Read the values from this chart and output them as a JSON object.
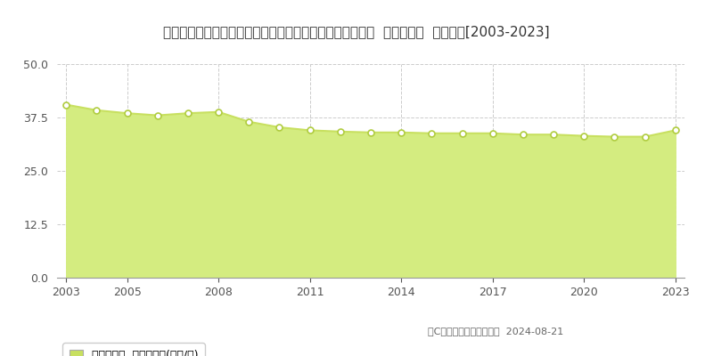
{
  "title": "埼玉県さいたま市見沼区大字御蔵字大ケ谷戸１３２５番６  基準地価格  地価推移[2003-2023]",
  "years": [
    2003,
    2004,
    2005,
    2006,
    2007,
    2008,
    2009,
    2010,
    2011,
    2012,
    2013,
    2014,
    2015,
    2016,
    2017,
    2018,
    2019,
    2020,
    2021,
    2022,
    2023
  ],
  "values": [
    40.5,
    39.2,
    38.5,
    38.0,
    38.5,
    38.8,
    36.5,
    35.2,
    34.5,
    34.2,
    34.0,
    34.0,
    33.8,
    33.8,
    33.8,
    33.5,
    33.5,
    33.2,
    33.0,
    33.0,
    34.5
  ],
  "ylim": [
    0,
    50
  ],
  "yticks": [
    0,
    12.5,
    25,
    37.5,
    50
  ],
  "xticks": [
    2003,
    2005,
    2008,
    2011,
    2014,
    2017,
    2020,
    2023
  ],
  "line_color": "#c8e060",
  "fill_color": "#d4ec80",
  "marker_facecolor": "white",
  "marker_edgecolor": "#b0cc40",
  "bg_color": "#ffffff",
  "grid_color": "#cccccc",
  "title_fontsize": 11,
  "tick_fontsize": 9,
  "legend_label": "基準地価格  平均坪単価(万円/坪)",
  "copyright_text": "（C）土地価格ドットコム  2024-08-21"
}
